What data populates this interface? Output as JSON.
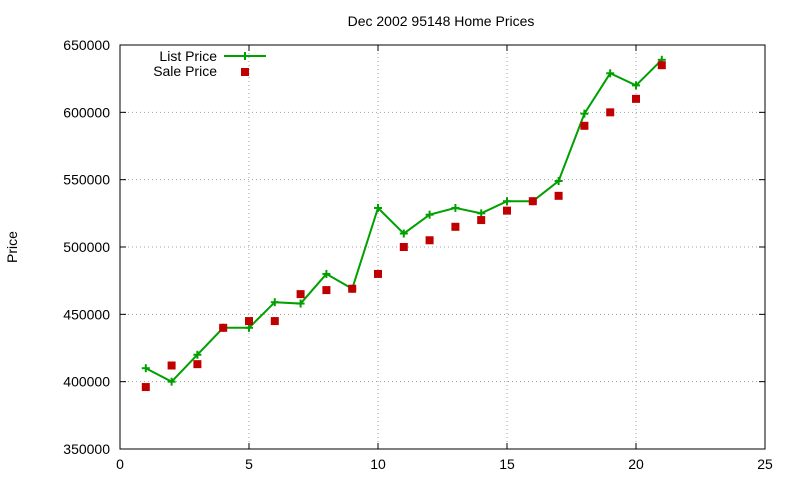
{
  "chart_data": {
    "type": "line",
    "title": "Dec 2002 95148 Home Prices",
    "xlabel": "",
    "ylabel": "Price",
    "xlim": [
      0,
      25
    ],
    "ylim": [
      350000,
      650000
    ],
    "x_ticks": [
      0,
      5,
      10,
      15,
      20,
      25
    ],
    "y_ticks": [
      350000,
      400000,
      450000,
      500000,
      550000,
      600000,
      650000
    ],
    "grid": true,
    "legend_position": "top-left",
    "series": [
      {
        "name": "List Price",
        "style": "line+cross",
        "color": "#00a000",
        "x": [
          1,
          2,
          3,
          4,
          5,
          6,
          7,
          8,
          9,
          10,
          11,
          12,
          13,
          14,
          15,
          16,
          17,
          18,
          19,
          20,
          21
        ],
        "values": [
          410000,
          400000,
          420000,
          440000,
          440000,
          459000,
          458000,
          480000,
          469000,
          529000,
          510000,
          524000,
          529000,
          525000,
          534000,
          534000,
          549000,
          599000,
          629000,
          620000,
          639000
        ]
      },
      {
        "name": "Sale Price",
        "style": "square-markers",
        "color": "#c00000",
        "x": [
          1,
          2,
          3,
          4,
          5,
          6,
          7,
          8,
          9,
          10,
          11,
          12,
          13,
          14,
          15,
          16,
          17,
          18,
          19,
          20,
          21
        ],
        "values": [
          396000,
          412000,
          413000,
          440000,
          445000,
          445000,
          465000,
          468000,
          469000,
          480000,
          500000,
          505000,
          515000,
          520000,
          527000,
          534000,
          538000,
          590000,
          600000,
          610000,
          635000
        ]
      }
    ]
  }
}
